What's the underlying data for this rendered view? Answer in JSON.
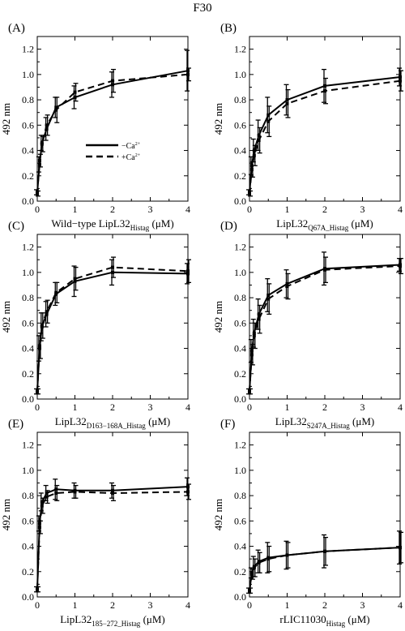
{
  "page": {
    "title": "F30"
  },
  "legend": {
    "minus_ca": "−Ca",
    "plus_ca": "+Ca",
    "superscript": "2+"
  },
  "chart_data": [
    {
      "panel": "(A)",
      "type": "line",
      "ylabel": "492 nm",
      "xlabel_main": "Wild−type LipL32",
      "xlabel_sub": "Histag",
      "xlabel_unit": " (μM)",
      "xlim": [
        0,
        4
      ],
      "ylim": [
        0,
        1.3
      ],
      "xticks": [
        "0",
        "1",
        "2",
        "3",
        "4"
      ],
      "yticks": [
        "0.0",
        "0.2",
        "0.4",
        "0.6",
        "0.8",
        "1.0",
        "1.2"
      ],
      "show_legend": true,
      "series": [
        {
          "name": "−Ca2+",
          "style": "solid",
          "x": [
            0,
            0.0625,
            0.125,
            0.25,
            0.5,
            1,
            2,
            4
          ],
          "y": [
            0.07,
            0.29,
            0.46,
            0.57,
            0.74,
            0.82,
            0.92,
            1.03
          ],
          "err": [
            0.02,
            0.06,
            0.06,
            0.09,
            0.08,
            0.09,
            0.1,
            0.16
          ]
        },
        {
          "name": "+Ca2+",
          "style": "dashed",
          "x": [
            0,
            0.0625,
            0.125,
            0.25,
            0.5,
            1,
            2,
            4
          ],
          "y": [
            0.06,
            0.32,
            0.45,
            0.6,
            0.72,
            0.86,
            0.95,
            1.0
          ],
          "err": [
            0.02,
            0.05,
            0.06,
            0.08,
            0.1,
            0.07,
            0.09,
            0.05
          ]
        }
      ]
    },
    {
      "panel": "(B)",
      "type": "line",
      "ylabel": "492 nm",
      "xlabel_main": "LipL32",
      "xlabel_sub": "Q67A_Histag",
      "xlabel_unit": " (μM)",
      "xlim": [
        0,
        4
      ],
      "ylim": [
        0,
        1.3
      ],
      "xticks": [
        "0",
        "1",
        "2",
        "3",
        "4"
      ],
      "yticks": [
        "0.0",
        "0.2",
        "0.4",
        "0.6",
        "0.8",
        "1.0",
        "1.2"
      ],
      "show_legend": false,
      "series": [
        {
          "name": "−Ca2+",
          "style": "solid",
          "x": [
            0,
            0.0625,
            0.125,
            0.25,
            0.5,
            1,
            2,
            4
          ],
          "y": [
            0.07,
            0.28,
            0.4,
            0.52,
            0.68,
            0.8,
            0.91,
            0.98
          ],
          "err": [
            0.02,
            0.07,
            0.09,
            0.12,
            0.14,
            0.12,
            0.13,
            0.07
          ]
        },
        {
          "name": "+Ca2+",
          "style": "dashed",
          "x": [
            0,
            0.0625,
            0.125,
            0.25,
            0.5,
            1,
            2,
            4
          ],
          "y": [
            0.06,
            0.25,
            0.36,
            0.48,
            0.63,
            0.77,
            0.87,
            0.95
          ],
          "err": [
            0.02,
            0.06,
            0.08,
            0.1,
            0.12,
            0.11,
            0.1,
            0.08
          ]
        }
      ]
    },
    {
      "panel": "(C)",
      "type": "line",
      "ylabel": "492 nm",
      "xlabel_main": "LipL32",
      "xlabel_sub": "D163−168A_Histag",
      "xlabel_unit": " (μM)",
      "xlim": [
        0,
        4
      ],
      "ylim": [
        0,
        1.3
      ],
      "xticks": [
        "0",
        "1",
        "2",
        "3",
        "4"
      ],
      "yticks": [
        "0.0",
        "0.2",
        "0.4",
        "0.6",
        "0.8",
        "1.0",
        "1.2"
      ],
      "show_legend": false,
      "series": [
        {
          "name": "−Ca2+",
          "style": "solid",
          "x": [
            0,
            0.0625,
            0.125,
            0.25,
            0.5,
            1,
            2,
            4
          ],
          "y": [
            0.06,
            0.4,
            0.57,
            0.67,
            0.83,
            0.93,
            1.0,
            0.99
          ],
          "err": [
            0.02,
            0.1,
            0.11,
            0.1,
            0.09,
            0.12,
            0.1,
            0.08
          ]
        },
        {
          "name": "+Ca2+",
          "style": "dashed",
          "x": [
            0,
            0.0625,
            0.125,
            0.25,
            0.5,
            1,
            2,
            4
          ],
          "y": [
            0.06,
            0.42,
            0.58,
            0.69,
            0.84,
            0.95,
            1.04,
            1.01
          ],
          "err": [
            0.02,
            0.1,
            0.1,
            0.09,
            0.08,
            0.09,
            0.08,
            0.09
          ]
        }
      ]
    },
    {
      "panel": "(D)",
      "type": "line",
      "ylabel": "492 nm",
      "xlabel_main": "LipL32",
      "xlabel_sub": "S247A_Histag",
      "xlabel_unit": " (μM)",
      "xlim": [
        0,
        4
      ],
      "ylim": [
        0,
        1.3
      ],
      "xticks": [
        "0",
        "1",
        "2",
        "3",
        "4"
      ],
      "yticks": [
        "0.0",
        "0.2",
        "0.4",
        "0.6",
        "0.8",
        "1.0",
        "1.2"
      ],
      "show_legend": false,
      "series": [
        {
          "name": "−Ca2+",
          "style": "solid",
          "x": [
            0,
            0.0625,
            0.125,
            0.25,
            0.5,
            1,
            2,
            4
          ],
          "y": [
            0.06,
            0.38,
            0.52,
            0.67,
            0.82,
            0.91,
            1.03,
            1.06
          ],
          "err": [
            0.02,
            0.09,
            0.11,
            0.12,
            0.13,
            0.11,
            0.13,
            0.05
          ]
        },
        {
          "name": "+Ca2+",
          "style": "dashed",
          "x": [
            0,
            0.0625,
            0.125,
            0.25,
            0.5,
            1,
            2,
            4
          ],
          "y": [
            0.06,
            0.35,
            0.5,
            0.63,
            0.79,
            0.89,
            1.02,
            1.05
          ],
          "err": [
            0.02,
            0.08,
            0.1,
            0.11,
            0.12,
            0.1,
            0.1,
            0.06
          ]
        }
      ]
    },
    {
      "panel": "(E)",
      "type": "line",
      "ylabel": "492 nm",
      "xlabel_main": "LipL32",
      "xlabel_sub": "185−272_Histag",
      "xlabel_unit": " (μM)",
      "xlim": [
        0,
        4
      ],
      "ylim": [
        0,
        1.3
      ],
      "xticks": [
        "0",
        "1",
        "2",
        "3",
        "4"
      ],
      "yticks": [
        "0.0",
        "0.2",
        "0.4",
        "0.6",
        "0.8",
        "1.0",
        "1.2"
      ],
      "show_legend": false,
      "series": [
        {
          "name": "−Ca2+",
          "style": "solid",
          "x": [
            0,
            0.0625,
            0.125,
            0.25,
            0.5,
            1,
            2,
            4
          ],
          "y": [
            0.06,
            0.58,
            0.75,
            0.82,
            0.85,
            0.84,
            0.84,
            0.87
          ],
          "err": [
            0.02,
            0.06,
            0.07,
            0.06,
            0.08,
            0.06,
            0.06,
            0.07
          ]
        },
        {
          "name": "+Ca2+",
          "style": "dashed",
          "x": [
            0,
            0.0625,
            0.125,
            0.25,
            0.5,
            1,
            2,
            4
          ],
          "y": [
            0.06,
            0.55,
            0.72,
            0.79,
            0.82,
            0.83,
            0.82,
            0.83
          ],
          "err": [
            0.02,
            0.05,
            0.06,
            0.05,
            0.06,
            0.05,
            0.06,
            0.06
          ]
        }
      ]
    },
    {
      "panel": "(F)",
      "type": "line",
      "ylabel": "492 nm",
      "xlabel_main": "rLIC11030",
      "xlabel_sub": "Histag",
      "xlabel_unit": " (μM)",
      "xlim": [
        0,
        4
      ],
      "ylim": [
        0,
        1.3
      ],
      "xticks": [
        "0",
        "1",
        "2",
        "3",
        "4"
      ],
      "yticks": [
        "0.0",
        "0.2",
        "0.4",
        "0.6",
        "0.8",
        "1.0",
        "1.2"
      ],
      "show_legend": false,
      "series": [
        {
          "name": "−Ca2+",
          "style": "solid",
          "x": [
            0,
            0.0625,
            0.125,
            0.25,
            0.5,
            1,
            2,
            4
          ],
          "y": [
            0.05,
            0.19,
            0.24,
            0.28,
            0.31,
            0.33,
            0.36,
            0.39
          ],
          "err": [
            0.02,
            0.04,
            0.08,
            0.09,
            0.12,
            0.11,
            0.13,
            0.13
          ]
        },
        {
          "name": "+Ca2+",
          "style": "dashed",
          "x": [
            0,
            0.0625,
            0.125,
            0.25,
            0.5,
            1,
            2,
            4
          ],
          "y": [
            0.05,
            0.18,
            0.23,
            0.27,
            0.3,
            0.33,
            0.36,
            0.39
          ],
          "err": [
            0.02,
            0.04,
            0.07,
            0.08,
            0.1,
            0.1,
            0.11,
            0.12
          ]
        }
      ]
    }
  ]
}
